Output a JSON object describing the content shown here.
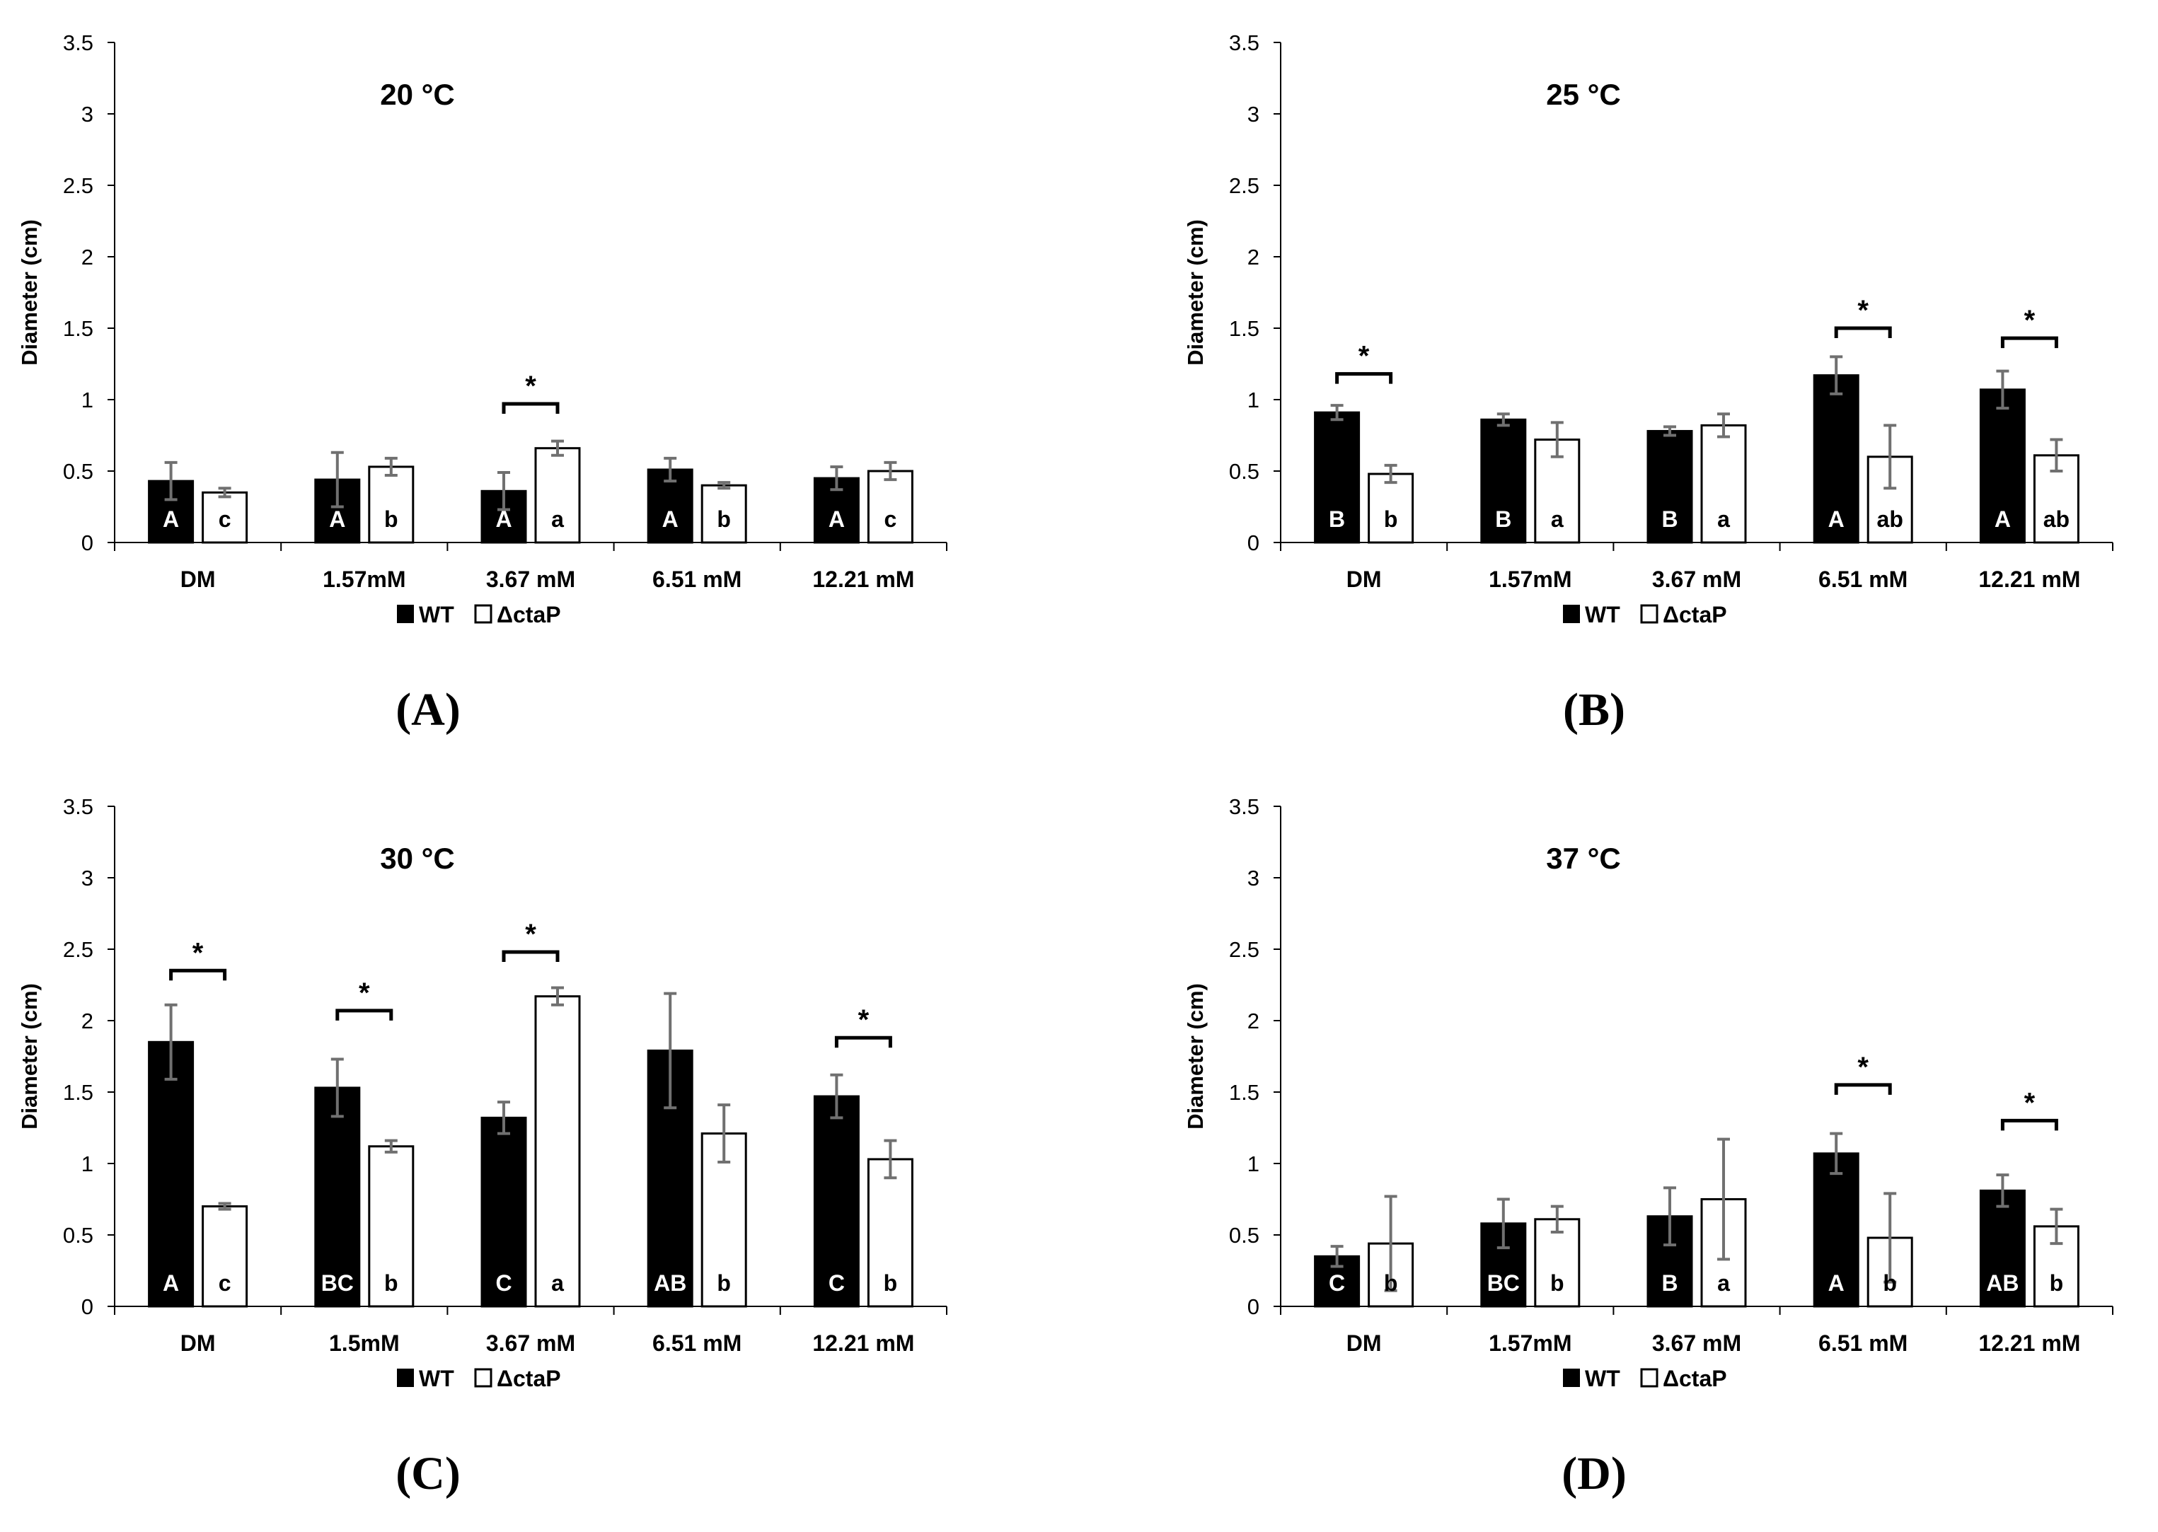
{
  "figure": {
    "legend_wt": "WT",
    "legend_mut": "ΔctaP",
    "colors": {
      "wt": "#000000",
      "mut": "#ffffff",
      "error": "#707070",
      "axis": "#000000"
    }
  },
  "chart_data": [
    {
      "type": "bar",
      "panel": "(A)",
      "title": "20 °C",
      "ylabel": "Diameter (cm)",
      "xlabel": "",
      "ylim": [
        0,
        3.5
      ],
      "yticks": [
        "0",
        "0.5",
        "1",
        "1.5",
        "2",
        "2.5",
        "3",
        "3.5"
      ],
      "categories": [
        "DM",
        "1.57mM",
        "3.67 mM",
        "6.51 mM",
        "12.21 mM"
      ],
      "legend": "bottom-center",
      "series": [
        {
          "name": "WT",
          "values": [
            0.43,
            0.44,
            0.36,
            0.51,
            0.45
          ],
          "errors": [
            0.13,
            0.19,
            0.13,
            0.08,
            0.08
          ],
          "letters": [
            "A",
            "A",
            "A",
            "A",
            "A"
          ]
        },
        {
          "name": "ΔctaP",
          "values": [
            0.35,
            0.53,
            0.66,
            0.4,
            0.5
          ],
          "errors": [
            0.03,
            0.06,
            0.05,
            0.02,
            0.06
          ],
          "letters": [
            "c",
            "b",
            "a",
            "b",
            "c"
          ]
        }
      ],
      "significance": [
        {
          "category": "3.67 mM",
          "y": 0.97,
          "label": "*"
        }
      ]
    },
    {
      "type": "bar",
      "panel": "(B)",
      "title": "25 °C",
      "ylabel": "Diameter (cm)",
      "xlabel": "",
      "ylim": [
        0,
        3.5
      ],
      "yticks": [
        "0",
        "0.5",
        "1",
        "1.5",
        "2",
        "2.5",
        "3",
        "3.5"
      ],
      "categories": [
        "DM",
        "1.57mM",
        "3.67 mM",
        "6.51 mM",
        "12.21 mM"
      ],
      "legend": "bottom-center",
      "series": [
        {
          "name": "WT",
          "values": [
            0.91,
            0.86,
            0.78,
            1.17,
            1.07
          ],
          "errors": [
            0.05,
            0.04,
            0.03,
            0.13,
            0.13
          ],
          "letters": [
            "B",
            "B",
            "B",
            "A",
            "A"
          ]
        },
        {
          "name": "ΔctaP",
          "values": [
            0.48,
            0.72,
            0.82,
            0.6,
            0.61
          ],
          "errors": [
            0.06,
            0.12,
            0.08,
            0.22,
            0.11
          ],
          "letters": [
            "b",
            "a",
            "a",
            "ab",
            "ab"
          ]
        }
      ],
      "significance": [
        {
          "category": "DM",
          "y": 1.18,
          "label": "*"
        },
        {
          "category": "6.51 mM",
          "y": 1.5,
          "label": "*"
        },
        {
          "category": "12.21 mM",
          "y": 1.43,
          "label": "*"
        }
      ]
    },
    {
      "type": "bar",
      "panel": "(C)",
      "title": "30 °C",
      "ylabel": "Diameter (cm)",
      "xlabel": "",
      "ylim": [
        0,
        3.5
      ],
      "yticks": [
        "0",
        "0.5",
        "1",
        "1.5",
        "2",
        "2.5",
        "3",
        "3.5"
      ],
      "categories": [
        "DM",
        "1.5mM",
        "3.67 mM",
        "6.51 mM",
        "12.21 mM"
      ],
      "legend": "bottom-center",
      "series": [
        {
          "name": "WT",
          "values": [
            1.85,
            1.53,
            1.32,
            1.79,
            1.47
          ],
          "errors": [
            0.26,
            0.2,
            0.11,
            0.4,
            0.15
          ],
          "letters": [
            "A",
            "BC",
            "C",
            "AB",
            "C"
          ]
        },
        {
          "name": "ΔctaP",
          "values": [
            0.7,
            1.12,
            2.17,
            1.21,
            1.03
          ],
          "errors": [
            0.02,
            0.04,
            0.06,
            0.2,
            0.13
          ],
          "letters": [
            "c",
            "b",
            "a",
            "b",
            "b"
          ]
        }
      ],
      "significance": [
        {
          "category": "DM",
          "y": 2.35,
          "label": "*"
        },
        {
          "category": "1.5mM",
          "y": 2.07,
          "label": "*"
        },
        {
          "category": "3.67 mM",
          "y": 2.48,
          "label": "*"
        },
        {
          "category": "12.21 mM",
          "y": 1.88,
          "label": "*"
        }
      ]
    },
    {
      "type": "bar",
      "panel": "(D)",
      "title": "37 °C",
      "ylabel": "Diameter (cm)",
      "xlabel": "",
      "ylim": [
        0,
        3.5
      ],
      "yticks": [
        "0",
        "0.5",
        "1",
        "1.5",
        "2",
        "2.5",
        "3",
        "3.5"
      ],
      "categories": [
        "DM",
        "1.57mM",
        "3.67 mM",
        "6.51 mM",
        "12.21 mM"
      ],
      "legend": "bottom-center",
      "series": [
        {
          "name": "WT",
          "values": [
            0.35,
            0.58,
            0.63,
            1.07,
            0.81
          ],
          "errors": [
            0.07,
            0.17,
            0.2,
            0.14,
            0.11
          ],
          "letters": [
            "C",
            "BC",
            "B",
            "A",
            "AB"
          ]
        },
        {
          "name": "ΔctaP",
          "values": [
            0.44,
            0.61,
            0.75,
            0.48,
            0.56
          ],
          "errors": [
            0.33,
            0.09,
            0.42,
            0.31,
            0.12
          ],
          "letters": [
            "b",
            "b",
            "a",
            "b",
            "b"
          ]
        }
      ],
      "significance": [
        {
          "category": "6.51 mM",
          "y": 1.55,
          "label": "*"
        },
        {
          "category": "12.21 mM",
          "y": 1.3,
          "label": "*"
        }
      ]
    }
  ]
}
